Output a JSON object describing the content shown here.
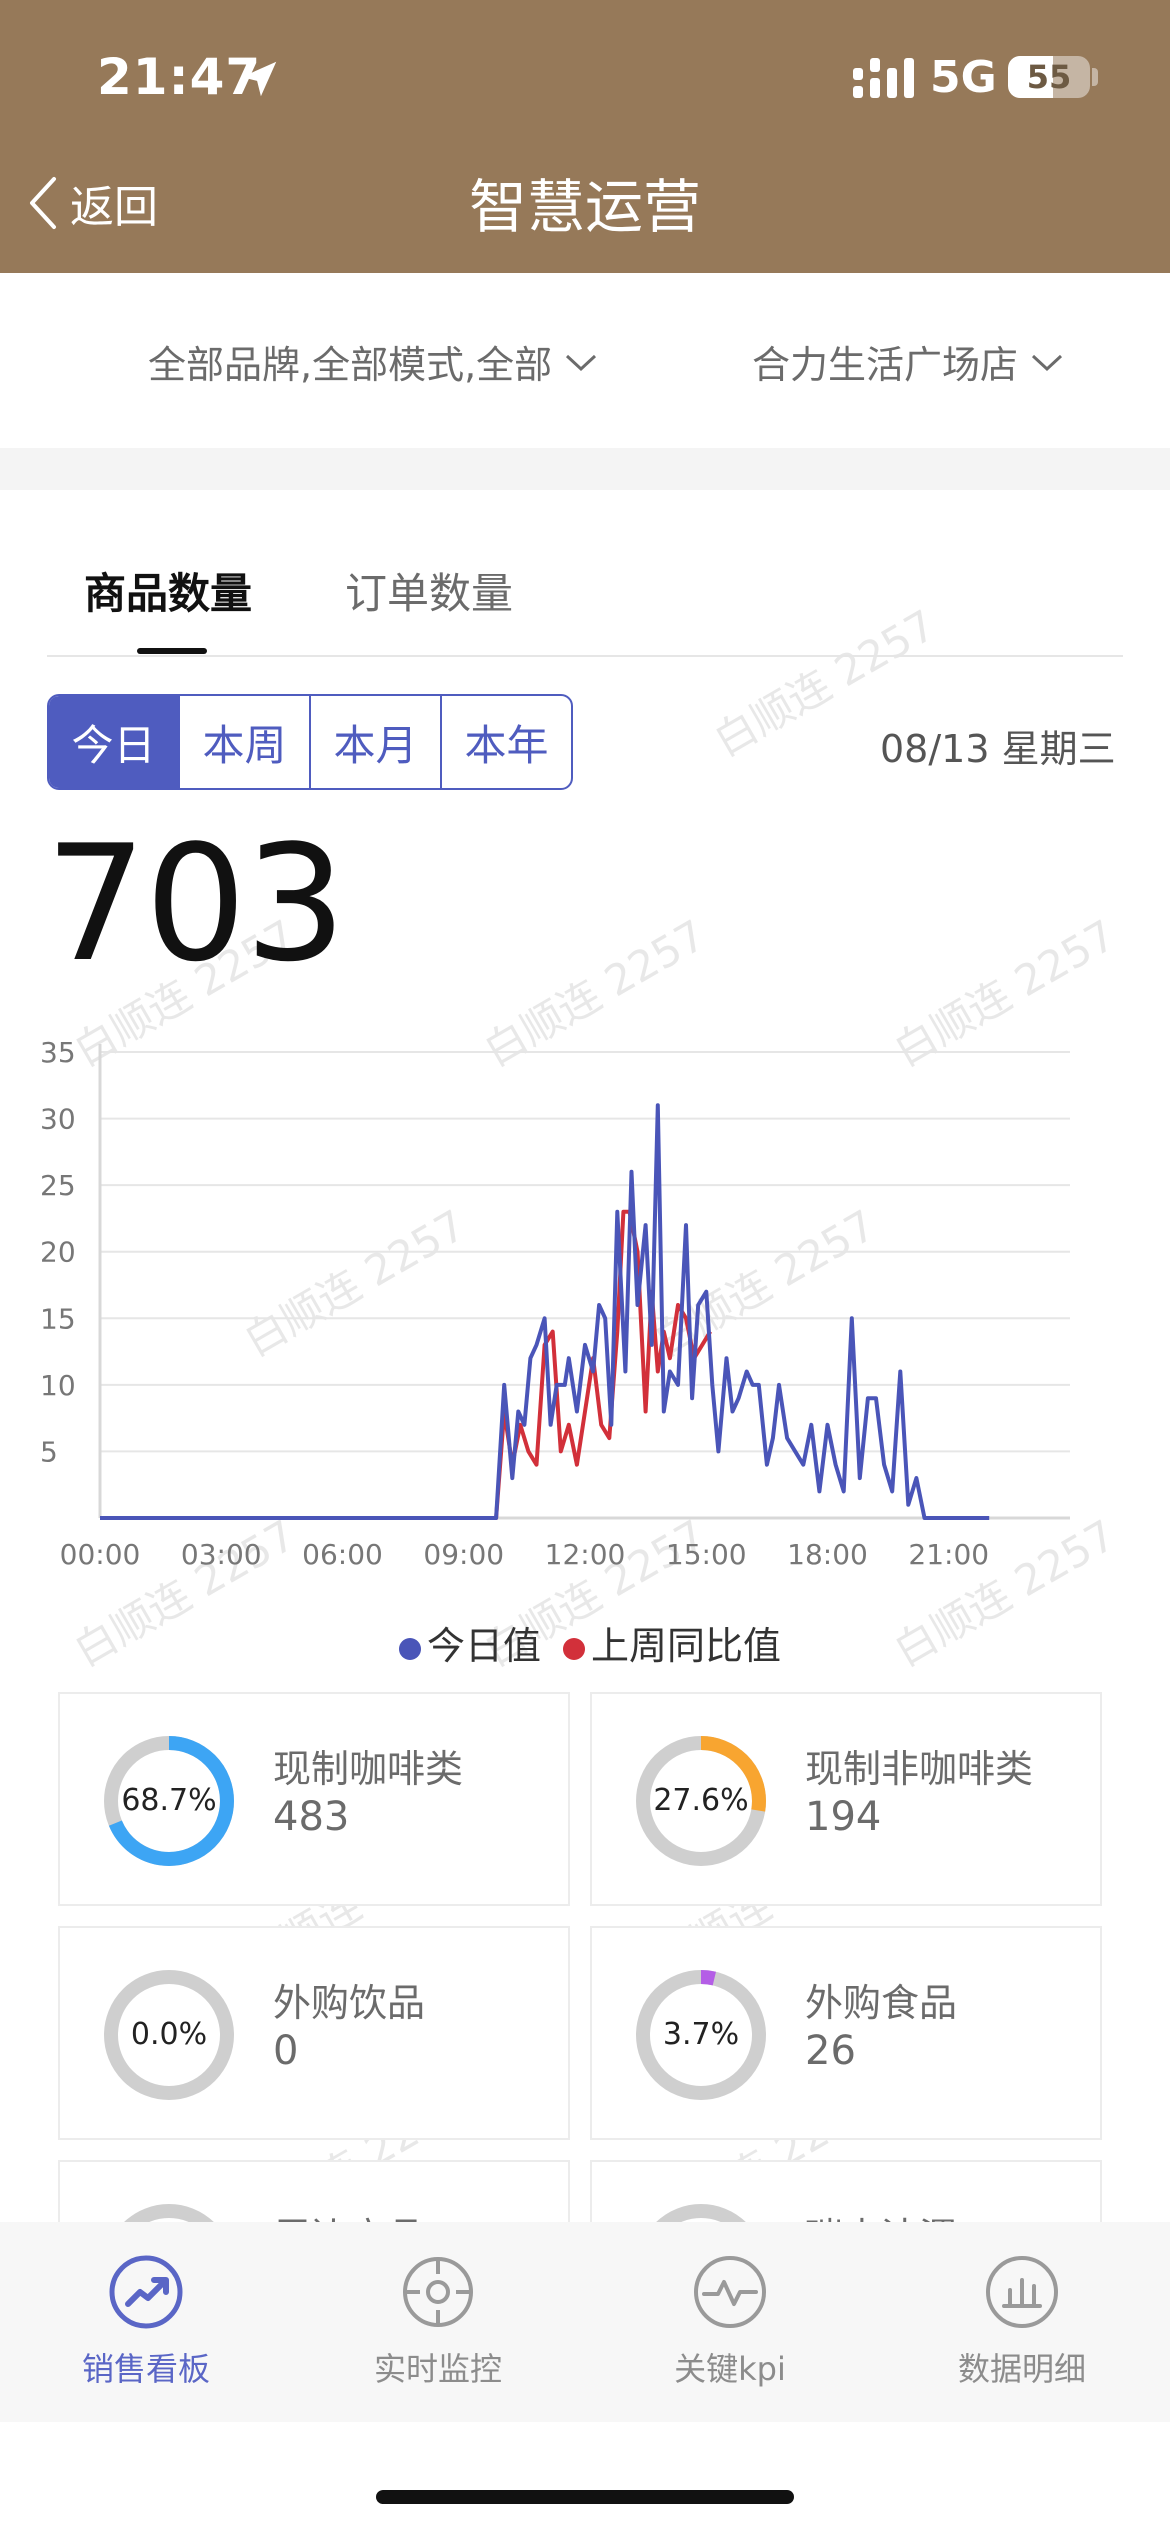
{
  "status_bar": {
    "time": "21:47",
    "network": "5G",
    "battery": "55",
    "battery_level": 0.55
  },
  "nav_bar": {
    "back_label": "返回",
    "title": "智慧运营"
  },
  "filters": {
    "brand": "全部品牌,全部模式,全部",
    "store": "合力生活广场店"
  },
  "tabs": [
    {
      "label": "商品数量",
      "active": true
    },
    {
      "label": "订单数量",
      "active": false
    }
  ],
  "period": {
    "options": [
      "今日",
      "本周",
      "本月",
      "本年"
    ],
    "selected": "今日"
  },
  "date_label": "08/13 星期三",
  "total": "703",
  "chart_data": {
    "type": "line",
    "x_ticks": [
      "00:00",
      "03:00",
      "06:00",
      "09:00",
      "12:00",
      "15:00",
      "18:00",
      "21:00"
    ],
    "y_ticks": [
      5,
      10,
      15,
      20,
      25,
      30,
      35
    ],
    "ylim": [
      0,
      35
    ],
    "xlim_hours": [
      0,
      24
    ],
    "grid": true,
    "legend_position": "bottom-center",
    "series": [
      {
        "name": "今日值",
        "color": "#4a55b8",
        "x_hours": [
          0,
          9.8,
          10.0,
          10.2,
          10.35,
          10.5,
          10.65,
          10.8,
          11.0,
          11.15,
          11.3,
          11.5,
          11.6,
          11.8,
          12.0,
          12.2,
          12.35,
          12.5,
          12.65,
          12.8,
          13.0,
          13.15,
          13.3,
          13.5,
          13.65,
          13.8,
          13.95,
          14.1,
          14.3,
          14.5,
          14.65,
          14.8,
          15.0,
          15.15,
          15.3,
          15.5,
          15.65,
          15.8,
          16.0,
          16.15,
          16.3,
          16.5,
          16.65,
          16.8,
          17.0,
          17.2,
          17.4,
          17.6,
          17.8,
          18.0,
          18.2,
          18.4,
          18.6,
          18.8,
          19.0,
          19.2,
          19.4,
          19.6,
          19.8,
          20.0,
          20.2,
          20.4,
          20.6,
          20.8,
          21.0,
          21.15,
          21.3,
          21.5,
          21.6,
          21.8,
          22.0
        ],
        "values": [
          0,
          0,
          10,
          3,
          8,
          7,
          12,
          13,
          15,
          7,
          10,
          10,
          12,
          8,
          13,
          11,
          16,
          15,
          7,
          23,
          11,
          26,
          16,
          22,
          13,
          31,
          8,
          11,
          10,
          22,
          9,
          16,
          17,
          10,
          5,
          12,
          8,
          9,
          11,
          10,
          10,
          4,
          6,
          10,
          6,
          5,
          4,
          7,
          2,
          7,
          4,
          2,
          15,
          3,
          9,
          9,
          4,
          2,
          11,
          1,
          3,
          0,
          0,
          0,
          0,
          0,
          0,
          0,
          0,
          0,
          0
        ]
      },
      {
        "name": "上周同比值",
        "color": "#d2303a",
        "x_hours": [
          0,
          9.8,
          10.0,
          10.2,
          10.4,
          10.6,
          10.8,
          11.0,
          11.2,
          11.4,
          11.6,
          11.8,
          12.0,
          12.2,
          12.4,
          12.6,
          12.8,
          12.95,
          13.1,
          13.3,
          13.5,
          13.65,
          13.8,
          13.95,
          14.1,
          14.3,
          14.5,
          14.7,
          14.9,
          15.1
        ],
        "values": [
          0,
          0,
          8,
          4,
          7,
          5,
          4,
          13,
          14,
          5,
          7,
          4,
          8,
          12,
          7,
          6,
          14,
          23,
          23,
          20,
          8,
          17,
          11,
          14,
          12,
          16,
          15,
          12,
          13,
          14
        ]
      }
    ]
  },
  "legend": [
    {
      "label": "今日值",
      "color": "#4a55b8"
    },
    {
      "label": "上周同比值",
      "color": "#d2303a"
    }
  ],
  "categories": [
    {
      "percent_text": "68.7%",
      "percent": 68.7,
      "name": "现制咖啡类",
      "value": "483",
      "color": "#3da5f4"
    },
    {
      "percent_text": "27.6%",
      "percent": 27.6,
      "name": "现制非咖啡类",
      "value": "194",
      "color": "#f8a530"
    },
    {
      "percent_text": "0.0%",
      "percent": 0.0,
      "name": "外购饮品",
      "value": "0",
      "color": "#3da5f4"
    },
    {
      "percent_text": "3.7%",
      "percent": 3.7,
      "name": "外购食品",
      "value": "26",
      "color": "#b45ee6"
    },
    {
      "percent_text": "",
      "percent": 0,
      "name": "周边商品",
      "value": "",
      "color": "#cccccc"
    },
    {
      "percent_text": "",
      "percent": 0,
      "name": "瑞幸洁渭",
      "value": "",
      "color": "#cccccc"
    }
  ],
  "watermark": "白顺连 2257",
  "bottom_nav": [
    {
      "label": "销售看板",
      "icon": "trend-up-icon",
      "active": true
    },
    {
      "label": "实时监控",
      "icon": "target-icon",
      "active": false
    },
    {
      "label": "关键kpi",
      "icon": "pulse-icon",
      "active": false
    },
    {
      "label": "数据明细",
      "icon": "bar-chart-icon",
      "active": false
    }
  ]
}
